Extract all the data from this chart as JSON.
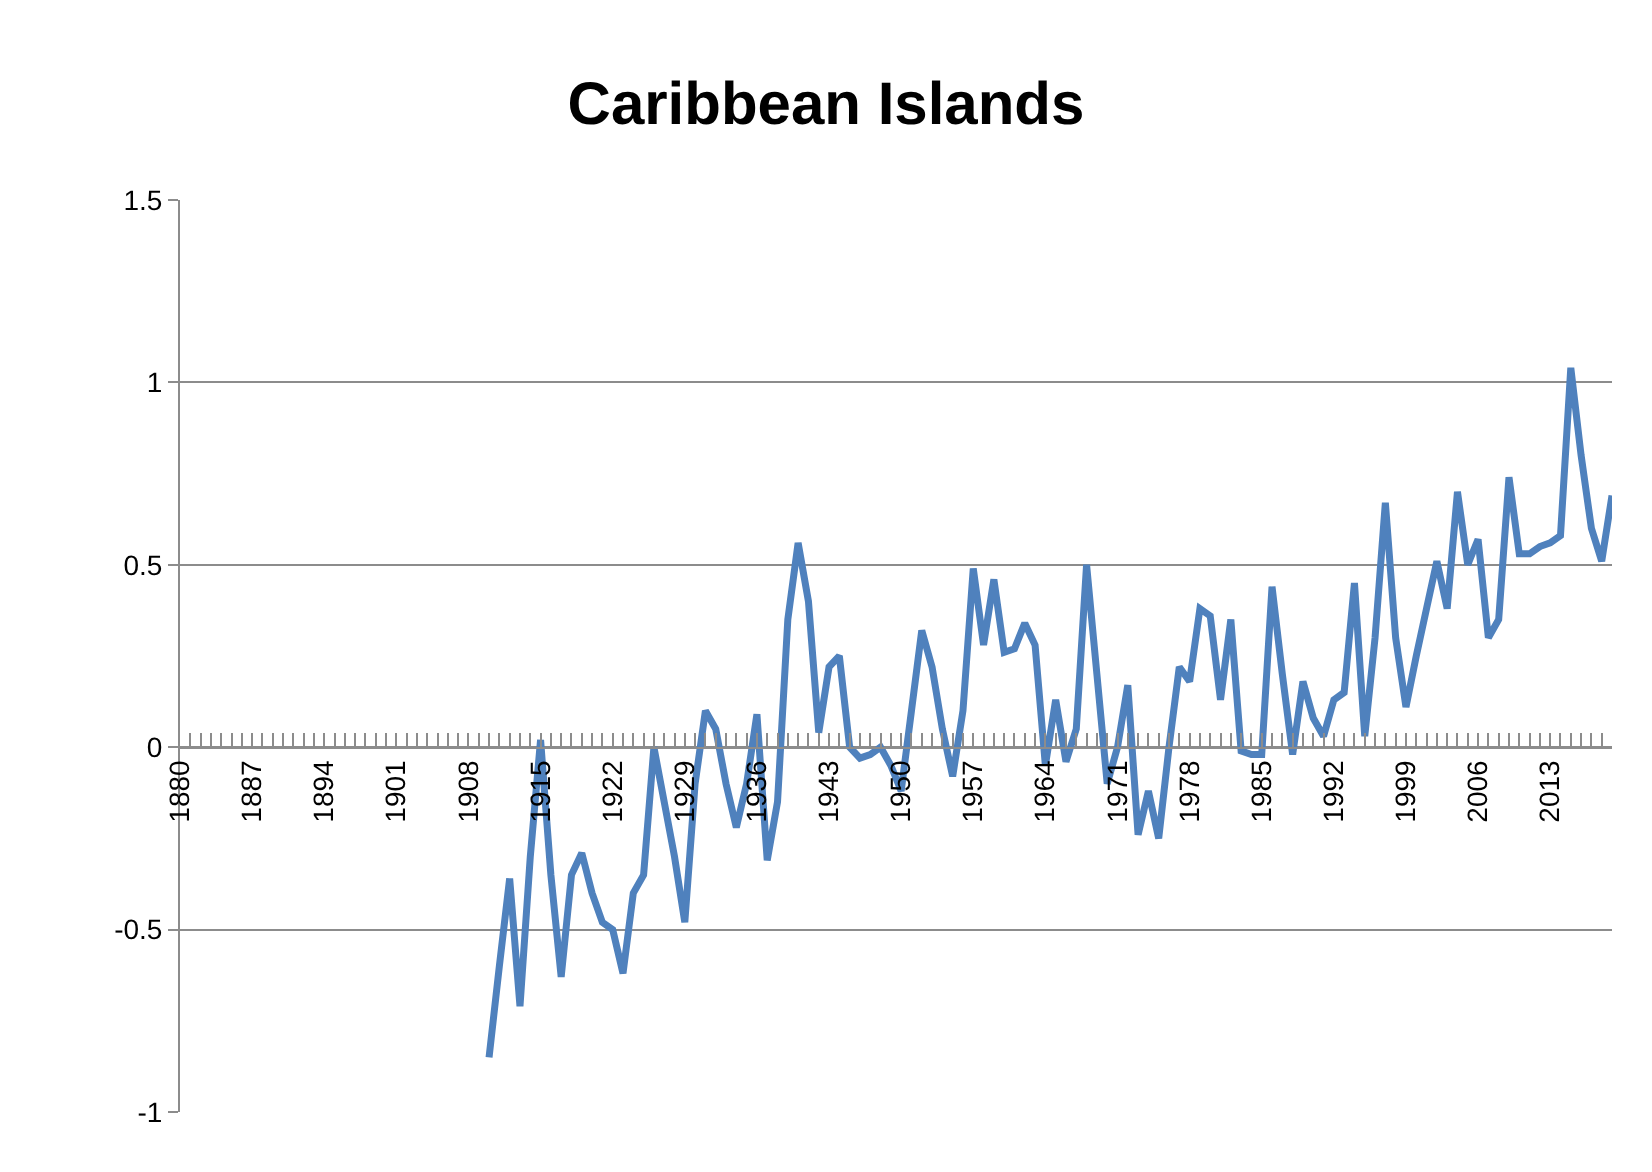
{
  "chart_data": {
    "type": "line",
    "title": "Caribbean Islands",
    "categories": [
      "1880",
      null,
      null,
      null,
      null,
      null,
      null,
      "1887",
      null,
      null,
      null,
      null,
      null,
      null,
      "1894",
      null,
      null,
      null,
      null,
      null,
      null,
      "1901",
      null,
      null,
      null,
      null,
      null,
      null,
      "1908",
      null,
      null,
      null,
      null,
      null,
      null,
      "1915",
      null,
      null,
      null,
      null,
      null,
      null,
      "1922",
      null,
      null,
      null,
      null,
      null,
      null,
      "1929",
      null,
      null,
      null,
      null,
      null,
      null,
      "1936",
      null,
      null,
      null,
      null,
      null,
      null,
      "1943",
      null,
      null,
      null,
      null,
      null,
      null,
      "1950",
      null,
      null,
      null,
      null,
      null,
      null,
      "1957",
      null,
      null,
      null,
      null,
      null,
      null,
      "1964",
      null,
      null,
      null,
      null,
      null,
      null,
      "1971",
      null,
      null,
      null,
      null,
      null,
      null,
      "1978",
      null,
      null,
      null,
      null,
      null,
      null,
      "1985",
      null,
      null,
      null,
      null,
      null,
      null,
      "1992",
      null,
      null,
      null,
      null,
      null,
      null,
      "1999",
      null,
      null,
      null,
      null,
      null,
      null,
      "2006",
      null,
      null,
      null,
      null,
      null,
      null,
      "2013",
      null,
      null,
      null,
      null,
      null,
      null
    ],
    "series": [
      {
        "color": "#4f81bd",
        "values": [
          null,
          null,
          null,
          null,
          null,
          null,
          null,
          null,
          null,
          null,
          null,
          null,
          null,
          null,
          null,
          null,
          null,
          null,
          null,
          null,
          null,
          null,
          null,
          null,
          null,
          null,
          null,
          null,
          null,
          null,
          -0.85,
          -0.6,
          -0.36,
          -0.71,
          -0.3,
          0.02,
          -0.35,
          -0.63,
          -0.35,
          -0.29,
          -0.4,
          -0.48,
          -0.5,
          -0.62,
          -0.4,
          -0.35,
          0.0,
          -0.15,
          -0.3,
          -0.48,
          -0.1,
          0.1,
          0.05,
          -0.1,
          -0.22,
          -0.1,
          0.09,
          -0.31,
          -0.15,
          0.35,
          0.56,
          0.4,
          0.04,
          0.22,
          0.25,
          0.0,
          -0.03,
          -0.02,
          0.0,
          -0.05,
          -0.12,
          0.1,
          0.32,
          0.22,
          0.05,
          -0.08,
          0.1,
          0.49,
          0.28,
          0.46,
          0.26,
          0.27,
          0.34,
          0.28,
          -0.05,
          0.13,
          -0.04,
          0.05,
          0.5,
          0.2,
          -0.1,
          0.0,
          0.17,
          -0.24,
          -0.12,
          -0.25,
          0.0,
          0.22,
          0.18,
          0.38,
          0.36,
          0.13,
          0.35,
          -0.01,
          -0.02,
          -0.02,
          0.44,
          0.2,
          -0.02,
          0.18,
          0.08,
          0.03,
          0.13,
          0.15,
          0.45,
          0.03,
          0.3,
          0.67,
          0.3,
          0.11,
          0.25,
          0.38,
          0.51,
          0.38,
          0.7,
          0.5,
          0.57,
          0.3,
          0.35,
          0.74,
          0.53,
          0.53,
          0.55,
          0.56,
          0.58,
          1.04,
          0.8,
          0.6,
          0.51,
          0.69
        ]
      }
    ],
    "ylim": [
      -1,
      1.5
    ],
    "yticks": [
      -1,
      -0.5,
      0,
      0.5,
      1,
      1.5
    ],
    "grid": "y",
    "legend": false
  }
}
